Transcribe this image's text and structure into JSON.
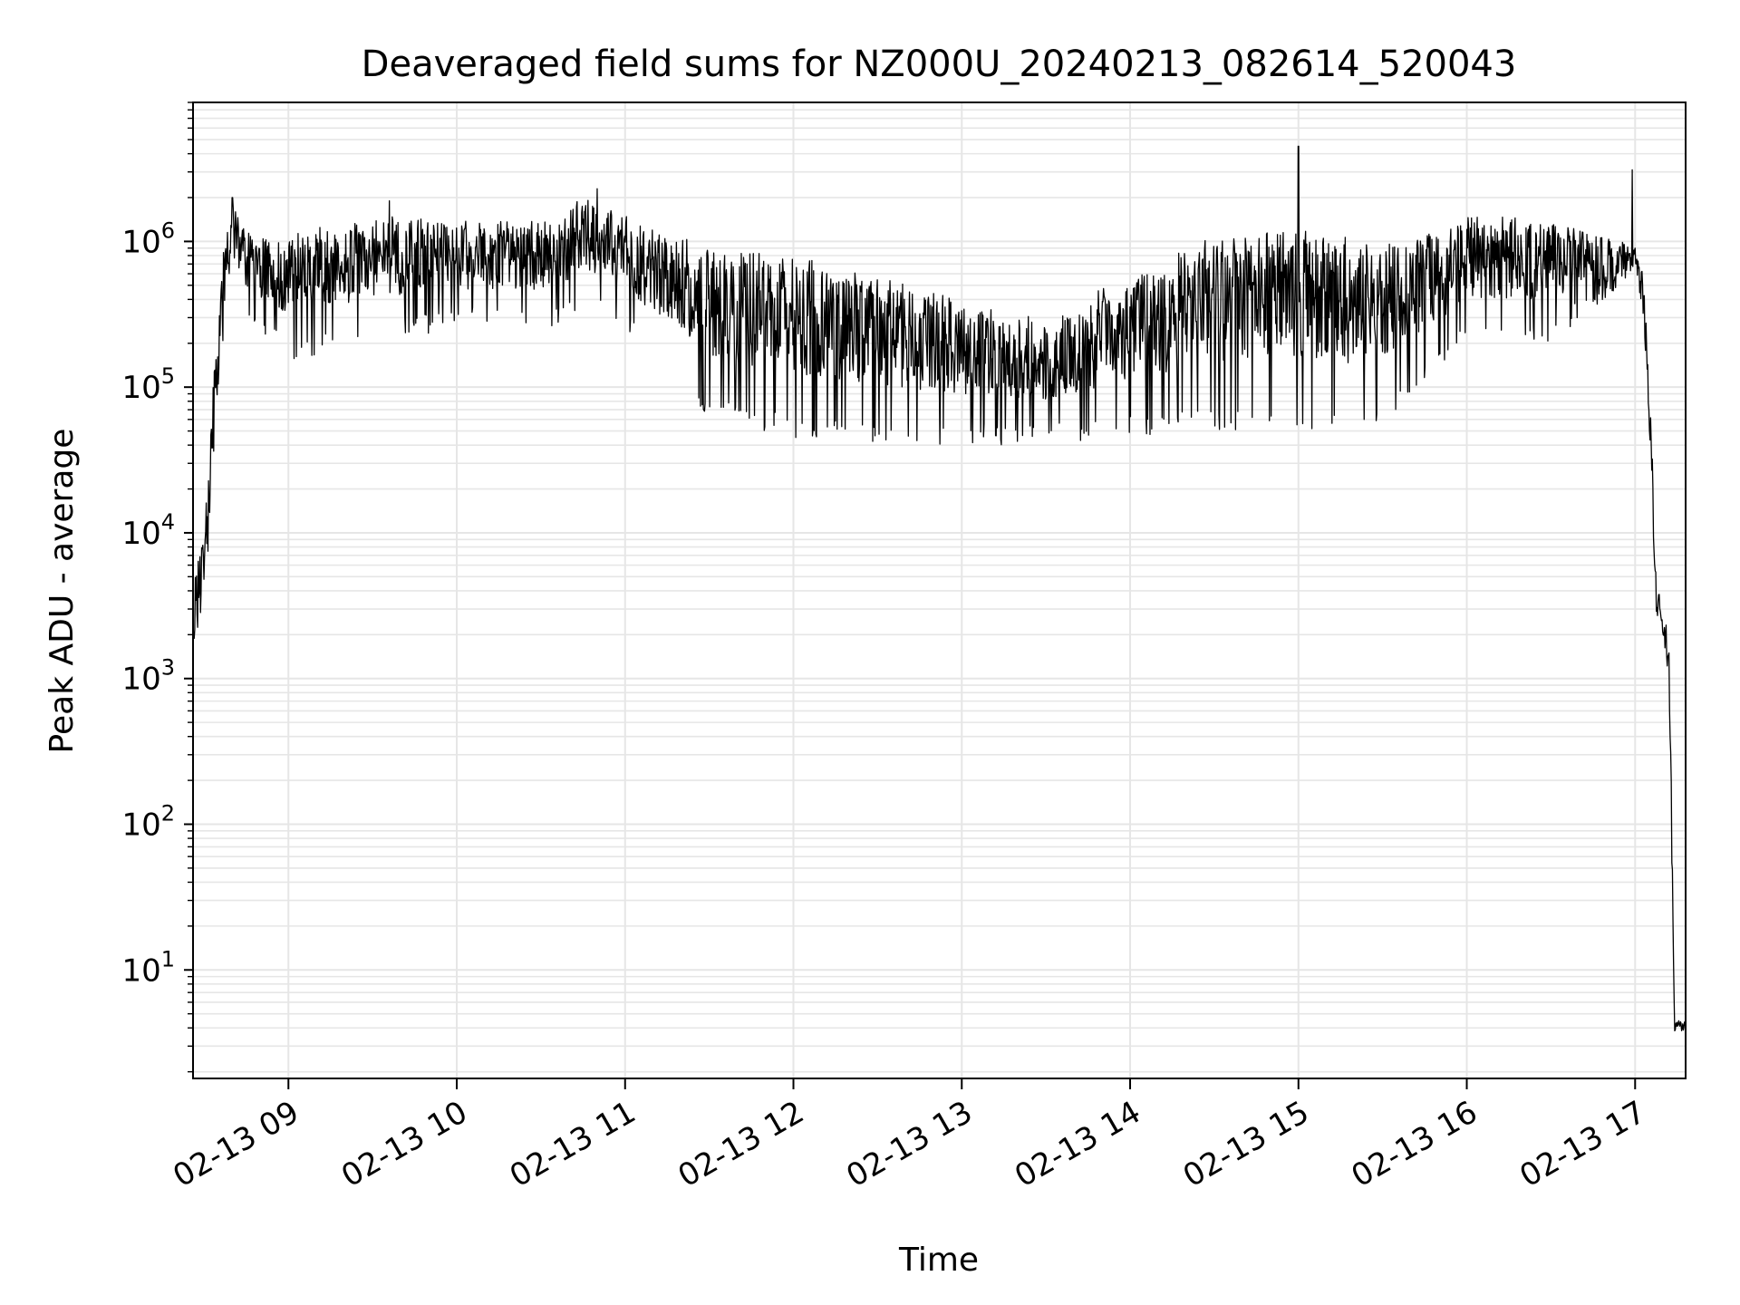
{
  "chart_data": {
    "type": "line",
    "title": "Deaveraged field sums for NZ000U_20240213_082614_520043",
    "xlabel": "Time",
    "ylabel": "Peak ADU - average",
    "yscale": "log",
    "grid": true,
    "ylim": [
      1.8,
      9000000
    ],
    "xlim": [
      "02-13 08:26",
      "02-13 17:18"
    ],
    "x_ticks": [
      {
        "value": "02-13 09:00",
        "label": "02-13 09"
      },
      {
        "value": "02-13 10:00",
        "label": "02-13 10"
      },
      {
        "value": "02-13 11:00",
        "label": "02-13 11"
      },
      {
        "value": "02-13 12:00",
        "label": "02-13 12"
      },
      {
        "value": "02-13 13:00",
        "label": "02-13 13"
      },
      {
        "value": "02-13 14:00",
        "label": "02-13 14"
      },
      {
        "value": "02-13 15:00",
        "label": "02-13 15"
      },
      {
        "value": "02-13 16:00",
        "label": "02-13 16"
      },
      {
        "value": "02-13 17:00",
        "label": "02-13 17"
      }
    ],
    "y_ticks": [
      {
        "value": 10,
        "base": "10",
        "exp": "1"
      },
      {
        "value": 100,
        "base": "10",
        "exp": "2"
      },
      {
        "value": 1000,
        "base": "10",
        "exp": "3"
      },
      {
        "value": 10000,
        "base": "10",
        "exp": "4"
      },
      {
        "value": 100000,
        "base": "10",
        "exp": "5"
      },
      {
        "value": 1000000,
        "base": "10",
        "exp": "6"
      }
    ],
    "series": [
      {
        "color": "#000000",
        "envelope": [
          {
            "x": "02-13 08:26",
            "low": 1000,
            "high": 4000
          },
          {
            "x": "02-13 08:28",
            "low": 1800,
            "high": 8000
          },
          {
            "x": "02-13 08:30",
            "low": 3000,
            "high": 11000
          },
          {
            "x": "02-13 08:32",
            "low": 8000,
            "high": 40000
          },
          {
            "x": "02-13 08:34",
            "low": 60000,
            "high": 200000
          },
          {
            "x": "02-13 08:37",
            "low": 200000,
            "high": 1000000
          },
          {
            "x": "02-13 08:40",
            "low": 500000,
            "high": 2000000
          },
          {
            "x": "02-13 08:45",
            "low": 300000,
            "high": 1200000
          },
          {
            "x": "02-13 09:00",
            "low": 150000,
            "high": 1100000
          },
          {
            "x": "02-13 09:30",
            "low": 200000,
            "high": 1600000
          },
          {
            "x": "02-13 10:00",
            "low": 250000,
            "high": 1500000
          },
          {
            "x": "02-13 10:30",
            "low": 250000,
            "high": 1500000
          },
          {
            "x": "02-13 10:50",
            "low": 300000,
            "high": 2300000
          },
          {
            "x": "02-13 11:00",
            "low": 250000,
            "high": 1500000
          },
          {
            "x": "02-13 11:30",
            "low": 60000,
            "high": 1000000
          },
          {
            "x": "02-13 12:00",
            "low": 45000,
            "high": 800000
          },
          {
            "x": "02-13 12:30",
            "low": 40000,
            "high": 600000
          },
          {
            "x": "02-13 13:00",
            "low": 40000,
            "high": 400000
          },
          {
            "x": "02-13 13:30",
            "low": 40000,
            "high": 300000
          },
          {
            "x": "02-13 14:00",
            "low": 45000,
            "high": 600000
          },
          {
            "x": "02-13 14:30",
            "low": 50000,
            "high": 1100000
          },
          {
            "x": "02-13 15:00",
            "low": 50000,
            "high": 1200000
          },
          {
            "x": "02-13 15:30",
            "low": 50000,
            "high": 1000000
          },
          {
            "x": "02-13 16:00",
            "low": 200000,
            "high": 1500000
          },
          {
            "x": "02-13 16:30",
            "low": 200000,
            "high": 1500000
          },
          {
            "x": "02-13 16:55",
            "low": 500000,
            "high": 1000000
          },
          {
            "x": "02-13 17:00",
            "low": 700000,
            "high": 900000
          },
          {
            "x": "02-13 17:03",
            "low": 300000,
            "high": 600000
          },
          {
            "x": "02-13 17:06",
            "low": 20000,
            "high": 50000
          },
          {
            "x": "02-13 17:07",
            "low": 3000,
            "high": 6000
          },
          {
            "x": "02-13 17:10",
            "low": 2000,
            "high": 3000
          },
          {
            "x": "02-13 17:12",
            "low": 1000,
            "high": 2000
          },
          {
            "x": "02-13 17:13",
            "low": 70,
            "high": 150
          },
          {
            "x": "02-13 17:14",
            "low": 3.8,
            "high": 4.5
          },
          {
            "x": "02-13 17:18",
            "low": 3.8,
            "high": 4.5
          }
        ],
        "spikes": [
          {
            "x": "02-13 08:40",
            "y": 2000000
          },
          {
            "x": "02-13 09:36",
            "y": 1900000
          },
          {
            "x": "02-13 10:50",
            "y": 2300000
          },
          {
            "x": "02-13 15:00",
            "y": 4500000
          },
          {
            "x": "02-13 16:59",
            "y": 3100000
          }
        ]
      }
    ]
  }
}
